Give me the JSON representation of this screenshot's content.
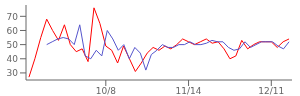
{
  "chart_data": {
    "type": "line",
    "series": [
      {
        "color": "#ff0000",
        "x": [
          0,
          1,
          2,
          3,
          4,
          5,
          6,
          7,
          8,
          9,
          10,
          11,
          12,
          13,
          14,
          15,
          16,
          17,
          18,
          19,
          20,
          21,
          22,
          23,
          24,
          25,
          26,
          27,
          28,
          29,
          30,
          31,
          32,
          33,
          34,
          35,
          36,
          37,
          38,
          39,
          40,
          41,
          42,
          43,
          44
        ],
        "values": [
          27,
          40,
          55,
          68,
          60,
          53,
          64,
          50,
          45,
          47,
          38,
          76,
          65,
          49,
          46,
          37,
          49,
          40,
          31,
          37,
          44,
          48,
          46,
          49,
          47,
          50,
          54,
          52,
          50,
          52,
          54,
          51,
          52,
          47,
          40,
          42,
          53,
          47,
          50,
          52,
          52,
          52,
          48,
          52,
          54
        ]
      },
      {
        "color": "#5555cc",
        "x": [
          3,
          3.931818,
          4.863636,
          5.795455,
          6.727273,
          7.659091,
          8.590909,
          9.522727,
          10.454545,
          11.386364,
          12.318182,
          13.25,
          14.181818,
          15.113636,
          16.045455,
          16.977273,
          17.909091,
          18.840909,
          19.772727,
          20.704545,
          21.636364,
          22.568182,
          23.5,
          24.431818,
          25.363636,
          26.295455,
          27.227273,
          28.159091,
          29.090909,
          30.022727,
          30.954545,
          31.886364,
          32.818182,
          33.75,
          34.681818,
          35.613636,
          36.545455,
          37.477273,
          38.409091,
          39.340909,
          40.272727,
          41.204545,
          42.136364,
          43.068182,
          44
        ],
        "values": [
          50,
          52,
          54,
          55,
          54,
          50,
          64,
          42,
          40,
          46,
          42,
          60,
          54,
          46,
          50,
          40,
          48,
          44,
          32,
          43,
          46,
          50,
          48,
          48,
          50,
          50,
          52,
          50,
          50,
          51,
          53,
          52,
          52,
          48,
          46,
          47,
          52,
          48,
          50,
          52,
          52,
          52,
          49,
          47,
          52
        ]
      }
    ],
    "xlim": [
      -0.5,
      44.5
    ],
    "xticks": [
      {
        "value": 13,
        "label": "10/8"
      },
      {
        "value": 27,
        "label": "11/14"
      },
      {
        "value": 41,
        "label": "12/11"
      }
    ],
    "ylim": [
      25,
      78
    ],
    "yticks": [
      30,
      40,
      50,
      60,
      70
    ]
  }
}
